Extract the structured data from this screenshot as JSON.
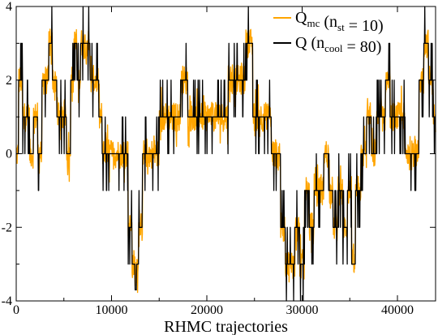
{
  "chart_data": {
    "type": "line",
    "xlabel": "RHMC trajectories",
    "ylabel": "",
    "xlim": [
      0,
      44000
    ],
    "ylim": [
      -4,
      4
    ],
    "x_ticks": [
      0,
      10000,
      20000,
      30000,
      40000
    ],
    "y_ticks": [
      -4,
      -2,
      0,
      2,
      4
    ],
    "grid": false,
    "legend_position": "top-right",
    "colors": {
      "mc": "#FFA500",
      "cool": "#000000"
    },
    "legend": [
      {
        "series": "mc",
        "main": "Q",
        "sub": "mc",
        "text1": " (n",
        "sub2": "st",
        "text2": " = 10)"
      },
      {
        "series": "cool",
        "main": "Q",
        "sub": "",
        "text1": "  (n",
        "sub2": "cool",
        "text2": " = 80)"
      }
    ],
    "series": [
      {
        "key": "cool",
        "x": [
          0,
          500,
          800,
          1200,
          1600,
          2000,
          2500,
          2900,
          3200,
          3600,
          4000,
          4500,
          5000,
          5500,
          5900,
          6200,
          6500,
          7000,
          7500,
          8000,
          8500,
          8800,
          9200,
          9800,
          10500,
          11500,
          12000,
          12300,
          12600,
          12700,
          13000,
          13500,
          14500,
          15500,
          16300,
          17000,
          17500,
          18500,
          19200,
          20000,
          21000,
          22000,
          22500,
          23000,
          23800,
          24300,
          24600,
          25000,
          26000,
          26500,
          27000,
          27500,
          28000,
          28500,
          29000,
          29500,
          30000,
          30500,
          31000,
          31500,
          32000,
          32500,
          33000,
          33500,
          34000,
          34500,
          35000,
          35400,
          35800,
          36500,
          37000,
          37500,
          38000,
          38500,
          39000,
          39500,
          40000,
          40500,
          41000,
          41500,
          42000,
          42500,
          43000,
          43500,
          44000
        ],
        "y": [
          0,
          2,
          1,
          1,
          0,
          1,
          0,
          2,
          2,
          3,
          2,
          1,
          1,
          0,
          2,
          3,
          2,
          3,
          3,
          2,
          2,
          1,
          0,
          0,
          0,
          0,
          -2,
          -3,
          -3.7,
          -3,
          -2,
          0,
          0,
          1,
          1,
          1,
          2,
          1,
          1,
          1,
          1,
          1,
          2,
          2,
          2,
          3,
          3,
          1,
          1,
          1,
          0,
          0,
          -2,
          -3,
          -3,
          -2,
          -3,
          -1,
          -2,
          -1,
          -1,
          0,
          -1,
          -2,
          -1,
          -2,
          -1,
          -3,
          -1,
          0,
          1,
          0,
          1,
          1,
          2,
          1,
          1,
          1,
          0,
          0,
          0,
          2,
          3,
          2,
          1
        ],
        "noise": 0.45
      },
      {
        "key": "mc",
        "x": [
          0,
          500,
          800,
          1200,
          1600,
          2000,
          2500,
          2900,
          3200,
          3600,
          4000,
          4500,
          5000,
          5500,
          5900,
          6200,
          6500,
          7000,
          7500,
          8000,
          8500,
          8800,
          9200,
          9800,
          10500,
          11500,
          12000,
          12300,
          12600,
          12700,
          13000,
          13500,
          14500,
          15500,
          16300,
          17000,
          17500,
          18500,
          19200,
          20000,
          21000,
          22000,
          22500,
          23000,
          23800,
          24300,
          24600,
          25000,
          26000,
          26500,
          27000,
          27500,
          28000,
          28500,
          29000,
          29500,
          30000,
          30500,
          31000,
          31500,
          32000,
          32500,
          33000,
          33500,
          34000,
          34500,
          35000,
          35400,
          35800,
          36500,
          37000,
          37500,
          38000,
          38500,
          39000,
          39500,
          40000,
          40500,
          41000,
          41500,
          42000,
          42500,
          43000,
          43500,
          44000
        ],
        "y": [
          0,
          2,
          1,
          1,
          0,
          1,
          0,
          2,
          2,
          3,
          2,
          1,
          1,
          0,
          2,
          3,
          2,
          3,
          3,
          2,
          2,
          1,
          0,
          0,
          0,
          0,
          -2,
          -3,
          -3.2,
          -3,
          -2,
          0,
          0,
          1,
          1,
          1,
          2,
          1,
          1,
          1,
          1,
          1,
          2,
          2,
          2,
          3,
          3,
          1,
          1,
          1,
          0,
          0,
          -2,
          -3,
          -3,
          -2,
          -3,
          -1,
          -2,
          -1,
          -1,
          0,
          -1,
          -2,
          -1,
          -2,
          -1,
          -3,
          -1,
          0,
          1,
          0,
          1,
          1,
          2,
          1,
          1,
          1,
          0,
          0,
          0,
          2,
          3,
          2,
          1
        ],
        "noise": 0.8
      }
    ]
  }
}
